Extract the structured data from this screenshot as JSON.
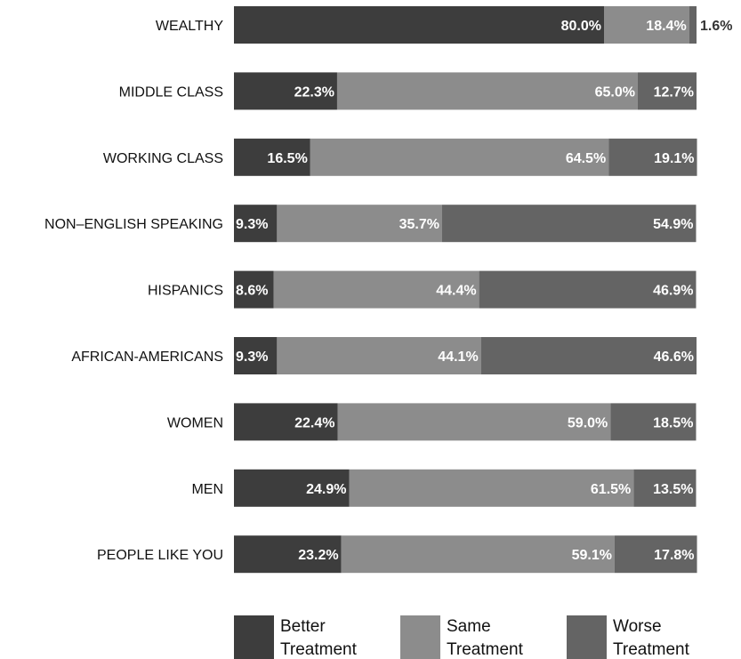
{
  "chart_data": {
    "type": "bar",
    "orientation": "horizontal",
    "stacked": true,
    "categories": [
      "WEALTHY",
      "MIDDLE CLASS",
      "WORKING CLASS",
      "NON–ENGLISH SPEAKING",
      "HISPANICS",
      "AFRICAN-AMERICANS",
      "WOMEN",
      "MEN",
      "PEOPLE LIKE YOU"
    ],
    "series": [
      {
        "name": "Better Treatment",
        "color": "#3d3d3d",
        "values": [
          80.0,
          22.3,
          16.5,
          9.3,
          8.6,
          9.3,
          22.4,
          24.9,
          23.2
        ],
        "labels": [
          "80.0%",
          "22.3%",
          "16.5%",
          "9.3%",
          "8.6%",
          "9.3%",
          "22.4%",
          "24.9%",
          "23.2%"
        ]
      },
      {
        "name": "Same Treatment",
        "color": "#8c8c8c",
        "values": [
          18.4,
          65.0,
          64.5,
          35.7,
          44.4,
          44.1,
          59.0,
          61.5,
          59.1
        ],
        "labels": [
          "18.4%",
          "65.0%",
          "64.5%",
          "35.7%",
          "44.4%",
          "44.1%",
          "59.0%",
          "61.5%",
          "59.1%"
        ]
      },
      {
        "name": "Worse Treatment",
        "color": "#646464",
        "values": [
          1.6,
          12.7,
          19.1,
          54.9,
          46.9,
          46.6,
          18.5,
          13.5,
          17.8
        ],
        "labels": [
          "1.6%",
          "12.7%",
          "19.1%",
          "54.9%",
          "46.9%",
          "46.6%",
          "18.5%",
          "13.5%",
          "17.8%"
        ]
      }
    ],
    "xlim": [
      0,
      100
    ],
    "legend_position": "bottom",
    "grid": false
  }
}
